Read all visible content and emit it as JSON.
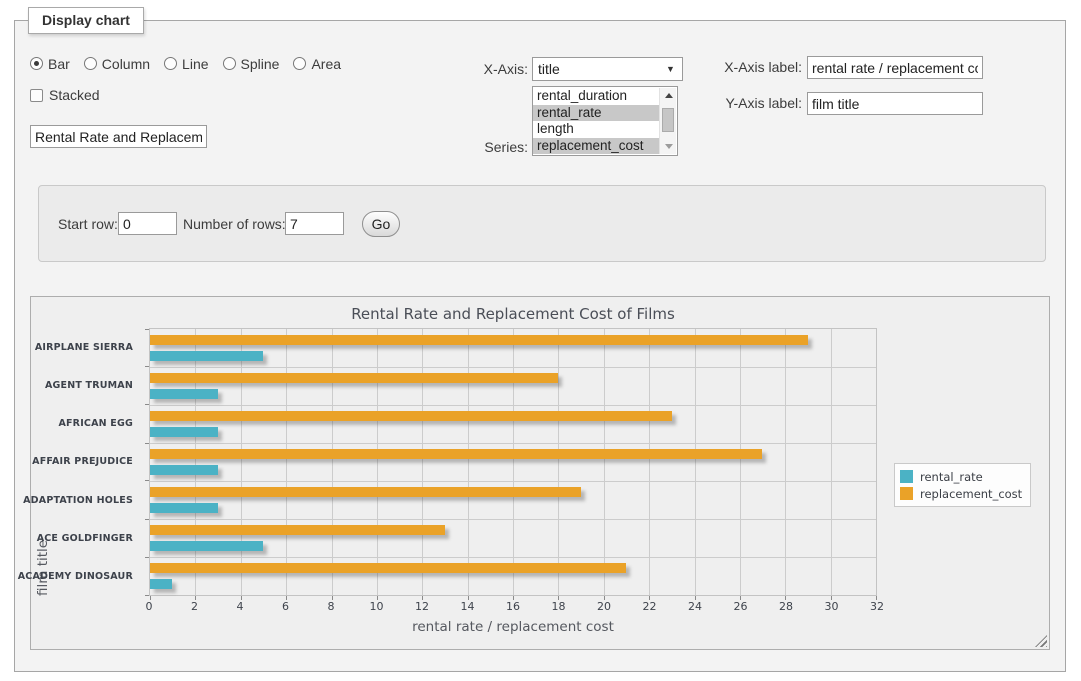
{
  "form": {
    "legend": "Display chart",
    "chart_types": [
      "Bar",
      "Column",
      "Line",
      "Spline",
      "Area"
    ],
    "chart_type_selected": "Bar",
    "stacked": {
      "label": "Stacked",
      "checked": false
    },
    "chart_title_input": "Rental Rate and Replacement Cost of Films",
    "x_axis_field": {
      "label": "X-Axis:",
      "value": "title"
    },
    "series_field": {
      "label": "Series:",
      "options": [
        {
          "label": "rental_duration",
          "selected": false
        },
        {
          "label": "rental_rate",
          "selected": true
        },
        {
          "label": "length",
          "selected": false
        },
        {
          "label": "replacement_cost",
          "selected": true
        }
      ]
    },
    "x_label_field": {
      "label": "X-Axis label:",
      "value": "rental rate / replacement cost"
    },
    "y_label_field": {
      "label": "Y-Axis label:",
      "value": "film title"
    },
    "rows_panel": {
      "start_label": "Start row:",
      "start_value": "0",
      "count_label": "Number of rows:",
      "count_value": "7",
      "go_label": "Go"
    }
  },
  "chart_data": {
    "type": "bar",
    "orientation": "horizontal",
    "title": "Rental Rate and Replacement Cost of Films",
    "categories": [
      "AIRPLANE SIERRA",
      "AGENT TRUMAN",
      "AFRICAN EGG",
      "AFFAIR PREJUDICE",
      "ADAPTATION HOLES",
      "ACE GOLDFINGER",
      "ACADEMY DINOSAUR"
    ],
    "series": [
      {
        "name": "rental_rate",
        "color": "#4bb2c5",
        "values": [
          4.99,
          2.99,
          2.99,
          2.99,
          2.99,
          4.99,
          0.99
        ]
      },
      {
        "name": "replacement_cost",
        "color": "#EAA228",
        "values": [
          28.99,
          17.99,
          22.99,
          26.99,
          18.99,
          12.99,
          20.99
        ]
      }
    ],
    "xlabel": "rental rate / replacement cost",
    "ylabel": "film title",
    "xlim": [
      0,
      32
    ],
    "xtick_step": 2,
    "legend_position": "right",
    "grid": true
  }
}
